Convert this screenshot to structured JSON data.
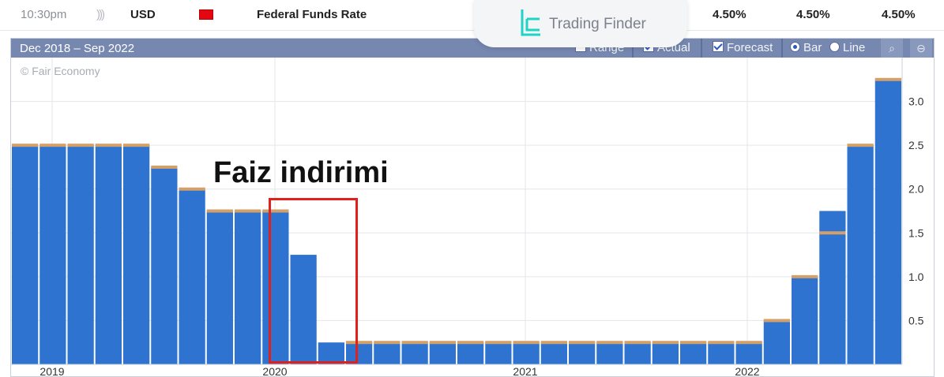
{
  "event_row": {
    "time": "10:30pm",
    "volatility_icon": "sound-waves-icon",
    "currency": "USD",
    "impact_icon": "high-impact-folder-icon",
    "impact_color": "#e30613",
    "event_name": "Federal Funds Rate",
    "actual": "4.50%",
    "forecast": "4.50%",
    "previous": "4.50%"
  },
  "brand": {
    "name": "Trading Finder",
    "icon": "trading-finder-logo-icon",
    "accent": "#1fd3c6"
  },
  "chart_header": {
    "date_range": "Dec 2018 – Sep 2022",
    "range_label": "Range",
    "actual_label": "Actual",
    "forecast_label": "Forecast",
    "bar_label": "Bar",
    "line_label": "Line",
    "actual_checked": true,
    "forecast_checked": true,
    "bar_selected": true,
    "zoom_in_icon": "zoom-in-icon",
    "zoom_out_icon": "zoom-out-icon"
  },
  "watermark": "© Fair Economy",
  "annotation": {
    "text": "Faiz indirimi",
    "box_color": "#e0201b"
  },
  "chart_data": {
    "type": "bar",
    "title": "",
    "xlabel": "",
    "ylabel": "",
    "ylim": [
      0,
      3.5
    ],
    "y_ticks": [
      "0.5",
      "1.0",
      "1.5",
      "2.0",
      "2.5",
      "3.0"
    ],
    "x_ticks": [
      "2019",
      "2020",
      "2021",
      "2022"
    ],
    "grid": true,
    "colors": {
      "actual": "#2e73d0",
      "forecast": "#d4a06a"
    },
    "series": [
      {
        "name": "Actual",
        "values": [
          2.5,
          2.5,
          2.5,
          2.5,
          2.5,
          2.25,
          2.0,
          1.75,
          1.75,
          1.75,
          1.25,
          0.25,
          0.25,
          0.25,
          0.25,
          0.25,
          0.25,
          0.25,
          0.25,
          0.25,
          0.25,
          0.25,
          0.25,
          0.25,
          0.25,
          0.25,
          0.25,
          0.5,
          1.0,
          1.75,
          2.5,
          3.25
        ]
      },
      {
        "name": "Forecast",
        "values": [
          2.5,
          2.5,
          2.5,
          2.5,
          2.5,
          2.25,
          2.0,
          1.75,
          1.75,
          1.75,
          null,
          null,
          0.25,
          0.25,
          0.25,
          0.25,
          0.25,
          0.25,
          0.25,
          0.25,
          0.25,
          0.25,
          0.25,
          0.25,
          0.25,
          0.25,
          0.25,
          0.5,
          1.0,
          1.5,
          2.5,
          3.25
        ]
      }
    ]
  }
}
